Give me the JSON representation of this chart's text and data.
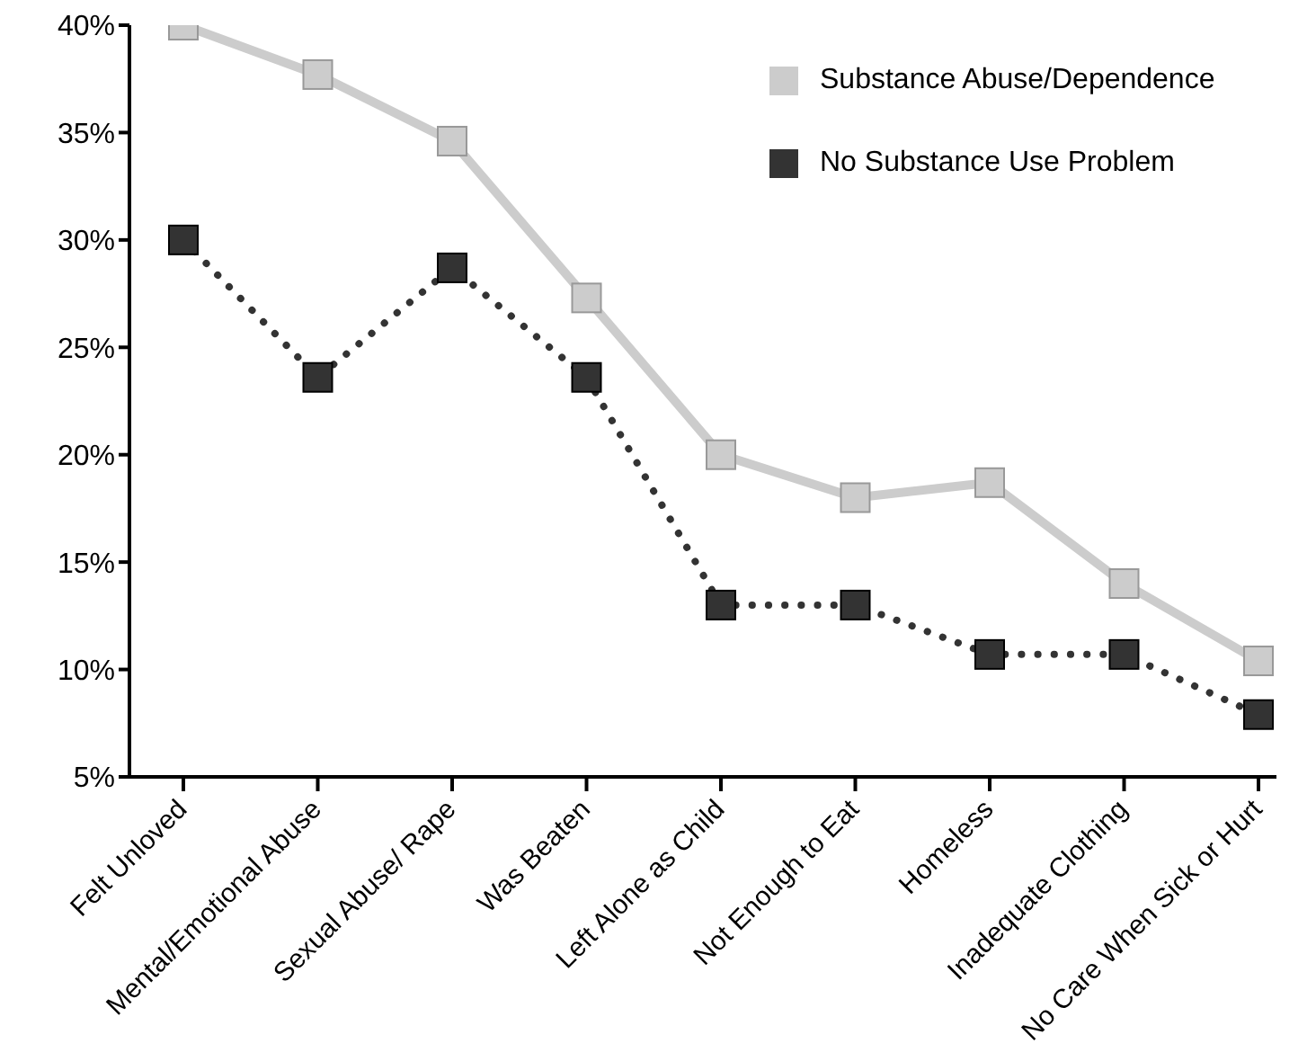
{
  "chart_data": {
    "type": "line",
    "categories": [
      "Felt Unloved",
      "Mental/Emotional Abuse",
      "Sexual Abuse/ Rape",
      "Was Beaten",
      "Left Alone as Child",
      "Not Enough to Eat",
      "Homeless",
      "Inadequate Clothing",
      "No Care When Sick or Hurt"
    ],
    "series": [
      {
        "name": "Substance Abuse/Dependence",
        "color": "#cccccc",
        "line_style": "solid",
        "values": [
          40,
          37.7,
          34.6,
          27.3,
          20,
          18,
          18.7,
          14,
          10.4
        ]
      },
      {
        "name": "No Substance Use Problem",
        "color": "#333333",
        "line_style": "dotted",
        "values": [
          30,
          23.6,
          28.7,
          23.6,
          13,
          13,
          10.7,
          10.7,
          7.9
        ]
      }
    ],
    "ylim": [
      5,
      40
    ],
    "yticks": [
      {
        "value": 5,
        "label": "5%"
      },
      {
        "value": 10,
        "label": "10%"
      },
      {
        "value": 15,
        "label": "15%"
      },
      {
        "value": 20,
        "label": "20%"
      },
      {
        "value": 25,
        "label": "25%"
      },
      {
        "value": 30,
        "label": "30%"
      },
      {
        "value": 35,
        "label": "35%"
      },
      {
        "value": 40,
        "label": "40%"
      }
    ],
    "grid": false,
    "legend": "top right",
    "marker": "square"
  }
}
